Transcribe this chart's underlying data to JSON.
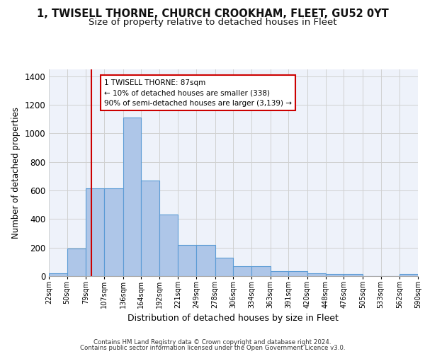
{
  "title_line1": "1, TWISELL THORNE, CHURCH CROOKHAM, FLEET, GU52 0YT",
  "title_line2": "Size of property relative to detached houses in Fleet",
  "xlabel": "Distribution of detached houses by size in Fleet",
  "ylabel": "Number of detached properties",
  "bar_values": [
    20,
    195,
    615,
    615,
    1110,
    670,
    430,
    220,
    220,
    130,
    70,
    70,
    33,
    33,
    20,
    13,
    13,
    0,
    0,
    13
  ],
  "bin_edges": [
    22,
    50,
    79,
    107,
    136,
    164,
    192,
    221,
    249,
    278,
    306,
    334,
    363,
    391,
    420,
    448,
    476,
    505,
    533,
    562,
    590
  ],
  "tick_labels": [
    "22sqm",
    "50sqm",
    "79sqm",
    "107sqm",
    "136sqm",
    "164sqm",
    "192sqm",
    "221sqm",
    "249sqm",
    "278sqm",
    "306sqm",
    "334sqm",
    "363sqm",
    "391sqm",
    "420sqm",
    "448sqm",
    "476sqm",
    "505sqm",
    "533sqm",
    "562sqm",
    "590sqm"
  ],
  "bar_color": "#aec6e8",
  "bar_edge_color": "#5b9bd5",
  "bar_edge_width": 0.8,
  "grid_color": "#d0d0d0",
  "background_color": "#eef2fa",
  "vline_x": 87,
  "vline_color": "#cc0000",
  "annotation_text": "1 TWISELL THORNE: 87sqm\n← 10% of detached houses are smaller (338)\n90% of semi-detached houses are larger (3,139) →",
  "annotation_box_color": "#cc0000",
  "ylim": [
    0,
    1450
  ],
  "yticks": [
    0,
    200,
    400,
    600,
    800,
    1000,
    1200,
    1400
  ],
  "footer_line1": "Contains HM Land Registry data © Crown copyright and database right 2024.",
  "footer_line2": "Contains public sector information licensed under the Open Government Licence v3.0.",
  "title_fontsize": 10.5,
  "subtitle_fontsize": 9.5,
  "xlabel_fontsize": 9,
  "ylabel_fontsize": 8.5,
  "tick_fontsize": 7,
  "annotation_fontsize": 7.5,
  "footer_fontsize": 6.2
}
